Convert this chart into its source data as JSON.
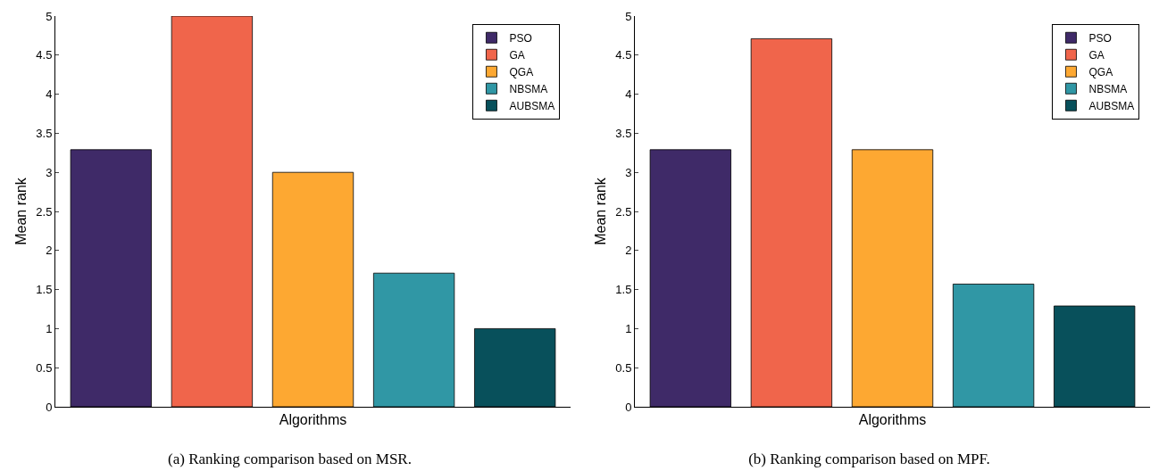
{
  "chart_data": [
    {
      "type": "bar",
      "title": "(a) Ranking comparison based on MSR.",
      "xlabel": "Algorithms",
      "ylabel": "Mean rank",
      "categories": [
        null
      ],
      "series": [
        {
          "name": "PSO",
          "color": "#3f2a68",
          "values": [
            3.29
          ]
        },
        {
          "name": "GA",
          "color": "#f0654b",
          "values": [
            5.0
          ]
        },
        {
          "name": "QGA",
          "color": "#fda832",
          "values": [
            3.0
          ]
        },
        {
          "name": "NBSMA",
          "color": "#3097a5",
          "values": [
            1.71
          ]
        },
        {
          "name": "AUBSMA",
          "color": "#08505b",
          "values": [
            1.0
          ]
        }
      ],
      "ylim": [
        0,
        5
      ],
      "yticks": [
        0,
        0.5,
        1,
        1.5,
        2,
        2.5,
        3,
        3.5,
        4,
        4.5,
        5
      ],
      "grid": false,
      "legend": "top right",
      "tick_labels": "y"
    },
    {
      "type": "bar",
      "title": "(b) Ranking comparison based on MPF.",
      "xlabel": "Algorithms",
      "ylabel": "Mean rank",
      "categories": [
        null
      ],
      "series": [
        {
          "name": "PSO",
          "color": "#3f2a68",
          "values": [
            3.29
          ]
        },
        {
          "name": "GA",
          "color": "#f0654b",
          "values": [
            4.71
          ]
        },
        {
          "name": "QGA",
          "color": "#fda832",
          "values": [
            3.29
          ]
        },
        {
          "name": "NBSMA",
          "color": "#3097a5",
          "values": [
            1.57
          ]
        },
        {
          "name": "AUBSMA",
          "color": "#08505b",
          "values": [
            1.29
          ]
        }
      ],
      "ylim": [
        0,
        5
      ],
      "yticks": [
        0,
        0.5,
        1,
        1.5,
        2,
        2.5,
        3,
        3.5,
        4,
        4.5,
        5
      ],
      "grid": false,
      "legend": "top right",
      "tick_labels": "y"
    }
  ]
}
